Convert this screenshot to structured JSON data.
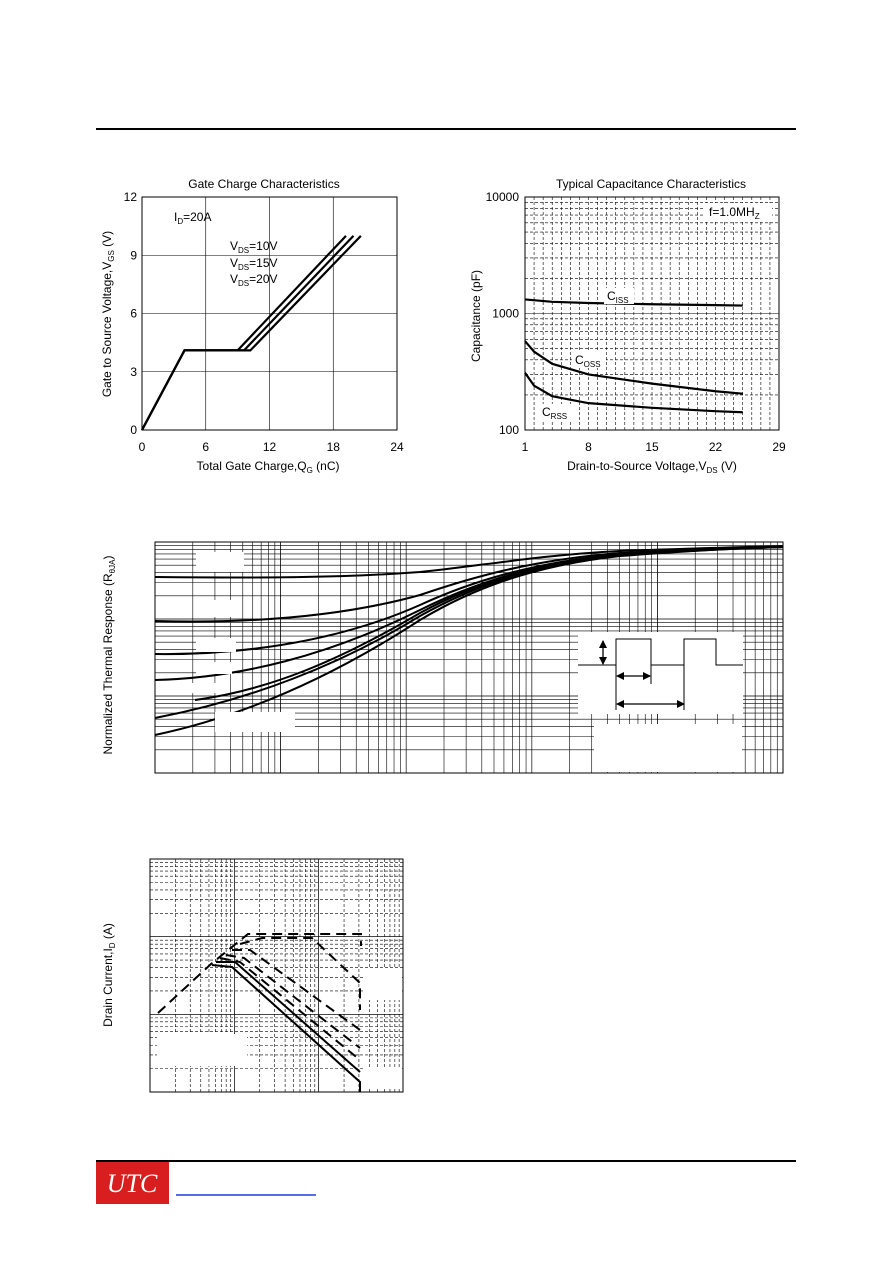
{
  "gate_charge": {
    "title": "Gate Charge Characteristics",
    "xlabel_main": "Total Gate Charge,Q",
    "xlabel_sub": "G",
    "xlabel_unit": " (nC)",
    "ylabel_main": "Gate to Source Voltage,V",
    "ylabel_sub": "GS",
    "ylabel_unit": " (V)",
    "annotation_id": {
      "main": "I",
      "sub": "D",
      "rest": "=20A"
    },
    "annotations_vds": [
      {
        "main": "V",
        "sub": "DS",
        "rest": "=10V"
      },
      {
        "main": "V",
        "sub": "DS",
        "rest": "=15V"
      },
      {
        "main": "V",
        "sub": "DS",
        "rest": "=20V"
      }
    ],
    "xticks": [
      "0",
      "6",
      "12",
      "18",
      "24"
    ],
    "yticks": [
      "0",
      "3",
      "6",
      "9",
      "12"
    ]
  },
  "capacitance": {
    "title": "Typical Capacitance  Characteristics",
    "xlabel_main": "Drain-to-Source Voltage,V",
    "xlabel_sub": "DS",
    "xlabel_unit": " (V)",
    "ylabel": "Capacitance (pF)",
    "freq_label": {
      "main": "f=1.0MH",
      "sub": "Z"
    },
    "xticks": [
      "1",
      "8",
      "15",
      "22",
      "29"
    ],
    "yticks": [
      "10000",
      "1000",
      "100"
    ],
    "curve_labels": [
      {
        "main": "C",
        "sub": "ISS"
      },
      {
        "main": "C",
        "sub": "OSS"
      },
      {
        "main": "C",
        "sub": "RSS"
      }
    ]
  },
  "thermal": {
    "ylabel_main": "Normalized Thermal Response (R",
    "ylabel_sub": "θJA",
    "ylabel_unit": ")"
  },
  "soa": {
    "ylabel_main": "Drain Current,I",
    "ylabel_sub": "D",
    "ylabel_unit": " (A)"
  },
  "footer": {
    "logo_text": "UTC",
    "logo_color": "#d81e1e"
  },
  "chart_data": [
    {
      "type": "line",
      "title": "Gate Charge Characteristics",
      "xlabel": "Total Gate Charge,QG (nC)",
      "ylabel": "Gate to Source Voltage,VGS (V)",
      "xlim": [
        0,
        24
      ],
      "ylim": [
        0,
        12
      ],
      "grid": true,
      "series": [
        {
          "name": "VDS=10V",
          "points": [
            [
              0,
              0
            ],
            [
              4,
              4.1
            ],
            [
              9,
              4.1
            ],
            [
              19.2,
              10
            ]
          ]
        },
        {
          "name": "VDS=15V",
          "points": [
            [
              0,
              0
            ],
            [
              4,
              4.1
            ],
            [
              9.6,
              4.1
            ],
            [
              19.9,
              10
            ]
          ]
        },
        {
          "name": "VDS=20V",
          "points": [
            [
              0,
              0
            ],
            [
              4,
              4.1
            ],
            [
              10.2,
              4.1
            ],
            [
              20.6,
              10
            ]
          ]
        }
      ]
    },
    {
      "type": "line",
      "title": "Typical Capacitance  Characteristics",
      "xlabel": "Drain-to-Source Voltage,VDS (V)",
      "ylabel": "Capacitance (pF)",
      "xlim": [
        1,
        29
      ],
      "ylim": [
        100,
        10000
      ],
      "yscale": "log",
      "grid": true,
      "series": [
        {
          "name": "CISS",
          "points": [
            [
              1,
              1320
            ],
            [
              4,
              1260
            ],
            [
              8,
              1230
            ],
            [
              15,
              1200
            ],
            [
              22,
              1180
            ],
            [
              25,
              1170
            ]
          ]
        },
        {
          "name": "COSS",
          "points": [
            [
              1,
              580
            ],
            [
              2,
              470
            ],
            [
              4,
              370
            ],
            [
              8,
              300
            ],
            [
              15,
              250
            ],
            [
              22,
              215
            ],
            [
              25,
              205
            ]
          ]
        },
        {
          "name": "CRSS",
          "points": [
            [
              1,
              310
            ],
            [
              2,
              240
            ],
            [
              4,
              195
            ],
            [
              8,
              170
            ],
            [
              15,
              155
            ],
            [
              22,
              145
            ],
            [
              25,
              142
            ]
          ]
        }
      ]
    }
  ]
}
